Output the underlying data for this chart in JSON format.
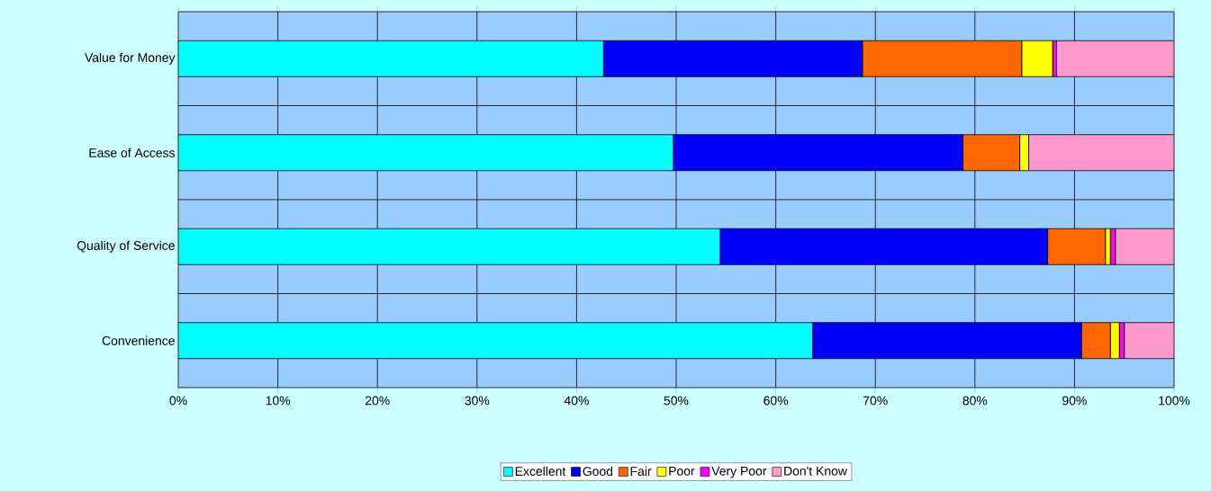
{
  "chart_data": {
    "type": "bar",
    "orientation": "horizontal",
    "stacked": true,
    "categories": [
      "Value for Money",
      "Ease of Access",
      "Quality of Service",
      "Convenience"
    ],
    "series": [
      {
        "name": "Excellent",
        "color": "#00ffff",
        "values": [
          42.7,
          49.7,
          54.4,
          63.7
        ]
      },
      {
        "name": "Good",
        "color": "#0000ff",
        "values": [
          26.0,
          29.1,
          32.9,
          27.0
        ]
      },
      {
        "name": "Fair",
        "color": "#ff6600",
        "values": [
          16.0,
          5.7,
          5.8,
          2.9
        ]
      },
      {
        "name": "Poor",
        "color": "#ffff00",
        "values": [
          3.1,
          0.9,
          0.5,
          0.9
        ]
      },
      {
        "name": "Very Poor",
        "color": "#ff00ff",
        "values": [
          0.4,
          0.0,
          0.5,
          0.5
        ]
      },
      {
        "name": "Don't Know",
        "color": "#ff99cc",
        "values": [
          11.8,
          14.6,
          5.9,
          5.0
        ]
      }
    ],
    "xlim": [
      0,
      100
    ],
    "xticks": [
      {
        "value": 0,
        "label": "0%"
      },
      {
        "value": 10,
        "label": "10%"
      },
      {
        "value": 20,
        "label": "20%"
      },
      {
        "value": 30,
        "label": "30%"
      },
      {
        "value": 40,
        "label": "40%"
      },
      {
        "value": 50,
        "label": "50%"
      },
      {
        "value": 60,
        "label": "60%"
      },
      {
        "value": 70,
        "label": "70%"
      },
      {
        "value": 80,
        "label": "80%"
      },
      {
        "value": 90,
        "label": "90%"
      },
      {
        "value": 100,
        "label": "100%"
      }
    ],
    "grid": true,
    "legend": "bottom"
  }
}
